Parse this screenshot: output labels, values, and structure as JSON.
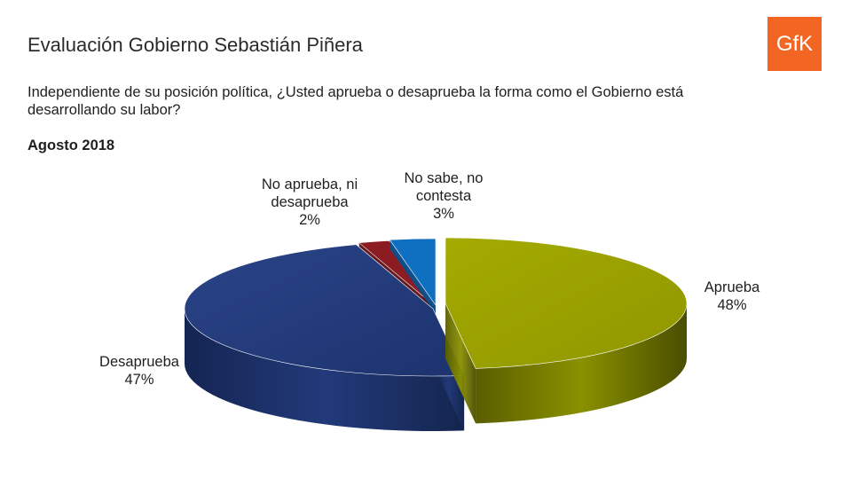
{
  "header": {
    "title": "Evaluación Gobierno Sebastián Piñera",
    "question": "Independiente de su posición política, ¿Usted aprueba o desaprueba la forma como el Gobierno está desarrollando su labor?",
    "period": "Agosto 2018",
    "logo_text": "GfK"
  },
  "colors": {
    "logo": "#f26522",
    "aprueba": "#98a000",
    "desaprueba": "#223a7a",
    "no_aprueba_ni_desaprueba": "#8c1c22",
    "no_sabe": "#0f6fc0"
  },
  "chart_data": {
    "type": "pie",
    "style": "3d-exploded",
    "title": "",
    "slices": [
      {
        "name": "Aprueba",
        "value": 48,
        "label_lines": [
          "Aprueba",
          "48%"
        ],
        "color": "#98a000"
      },
      {
        "name": "Desaprueba",
        "value": 47,
        "label_lines": [
          "Desaprueba",
          "47%"
        ],
        "color": "#223a7a"
      },
      {
        "name": "No aprueba, ni desaprueba",
        "value": 2,
        "label_lines": [
          "No aprueba, ni",
          "desaprueba",
          "2%"
        ],
        "color": "#8c1c22"
      },
      {
        "name": "No sabe, no contesta",
        "value": 3,
        "label_lines": [
          "No sabe, no",
          "contesta",
          "3%"
        ],
        "color": "#0f6fc0"
      }
    ]
  }
}
